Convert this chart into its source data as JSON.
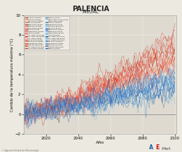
{
  "title": "PALENCIA",
  "subtitle": "ANUAL",
  "xlabel": "Año",
  "ylabel": "Cambio de la temperatura máxima (°C)",
  "xlim": [
    2006,
    2101
  ],
  "ylim": [
    -2,
    10
  ],
  "yticks": [
    -2,
    0,
    2,
    4,
    6,
    8,
    10
  ],
  "xticks": [
    2020,
    2040,
    2060,
    2080,
    2100
  ],
  "year_start": 2006,
  "year_end": 2100,
  "n_red_series": 19,
  "n_blue_series": 19,
  "red_final_mean": 6.5,
  "blue_final_mean": 3.0,
  "red_spread": 1.8,
  "blue_spread": 1.0,
  "noise_scale": 0.55,
  "background_color": "#ece9e0",
  "plot_bg_color": "#dedad0",
  "red_colors": [
    "#d73027",
    "#f46d43",
    "#fdae61",
    "#d9534f",
    "#c0392b",
    "#e74c3c",
    "#ff6666",
    "#ff4444",
    "#cc2200",
    "#ee3333",
    "#ff8888",
    "#dd1111",
    "#ff7755",
    "#cc3311",
    "#ff5533",
    "#ee4422",
    "#dd3311",
    "#cc4422",
    "#bb3311"
  ],
  "blue_colors": [
    "#4575b4",
    "#74add1",
    "#abd9e9",
    "#2166ac",
    "#4393c3",
    "#6baed6",
    "#2196F3",
    "#1565C0",
    "#1976D2",
    "#42A5F5",
    "#64B5F6",
    "#0D47A1",
    "#1E88E5",
    "#5C9BCC",
    "#3a7abf",
    "#5588cc",
    "#4477bb",
    "#336699",
    "#2255aa"
  ],
  "legend_entries_left": [
    "ACCESS1.0_RCP85",
    "ACCESS1.3_RCP85",
    "BCC-CSM1.1_RCP85",
    "BNU-ESM_RCP85",
    "CNRM-CM5A_RCP85",
    "CNRM-ESM_RCP85",
    "CSIRO-Mk3.6_RCP85",
    "FGOALS_RCP85",
    "HadGEM2-ES_RCP85",
    "inmcm4_RCP85",
    "IPSL-CM5A-LR_RCP85",
    "IPSL-CM5A-MR_RCP85",
    "IPSL-CM5B_RCP85",
    "MPI-ESM-LR_RCP85",
    "MPI-ESM-MR_RCP85",
    "NorESM1-M_RCP85",
    "NorESM1-ME_RCP85",
    "IPSL-CM5B-LR_RCP85",
    "IPSl-CM5B-LR_RCP85"
  ],
  "legend_entries_right": [
    "MIROC5_RCP45",
    "MIROC-ESM-CHEM_RCP45",
    "MIROC-ESM_RCP45",
    "ACCESS1.0_RCP45",
    "NorESM1-M_RCP45",
    "NorESM1-ME_RCP45",
    "BNU-ESM_RCP45",
    "CNRM-CM5A_RCP45",
    "CNRM-ESM_RCP45",
    "CSIRO-Mk3.6_RCP45",
    "inmcm4_RCP45",
    "IPSL-CM5A-LR_RCP45",
    "IPSL-CM5A-MR_RCP45",
    "IPSL-CM5B-LR_RCP45",
    "MPI-ESM-LR_RCP45",
    "MPI-ESM-MR_RCP45",
    "NorESM1-M_RCP45",
    "NorESM1-ME_RCP45",
    "MIROC5_RCP45"
  ],
  "watermark": "© Agencia Estatal de Meteorología"
}
